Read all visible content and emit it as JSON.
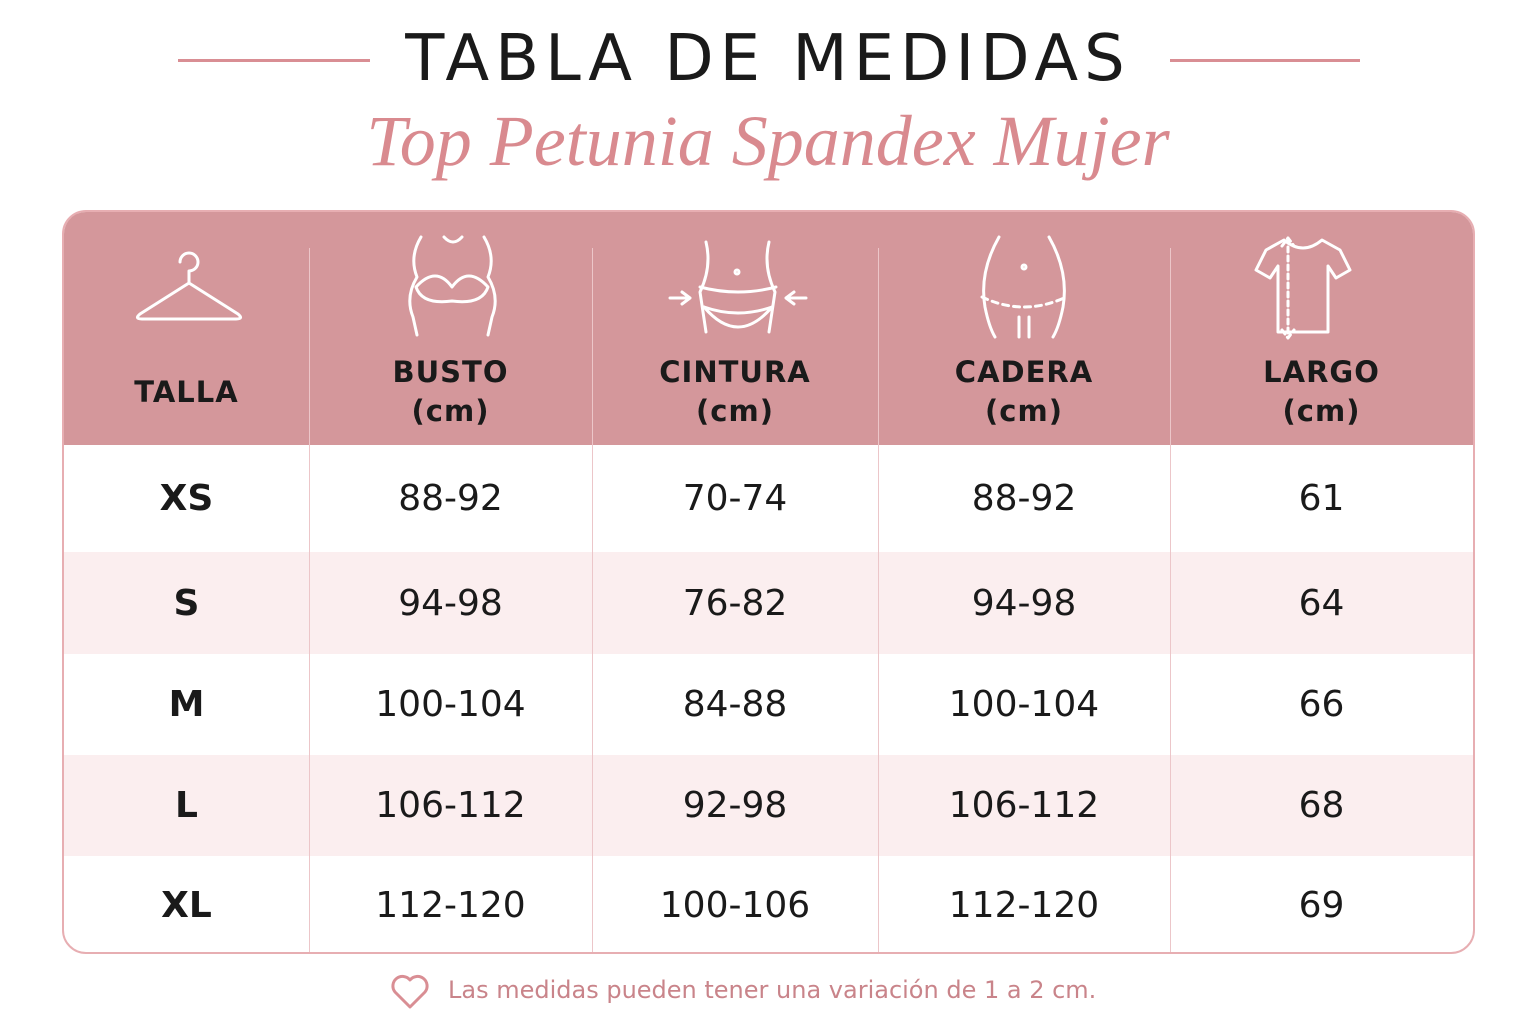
{
  "title": "TABLA DE MEDIDAS",
  "subtitle": "Top Petunia Spandex Mujer",
  "table": {
    "headers": [
      {
        "label": "TALLA"
      },
      {
        "label": "BUSTO",
        "unit": "(cm)"
      },
      {
        "label": "CINTURA",
        "unit": "(cm)"
      },
      {
        "label": "CADERA",
        "unit": "(cm)"
      },
      {
        "label": "LARGO",
        "unit": "(cm)"
      }
    ],
    "rows": [
      [
        "XS",
        "88-92",
        "70-74",
        "88-92",
        "61"
      ],
      [
        "S",
        "94-98",
        "76-82",
        "94-98",
        "64"
      ],
      [
        "M",
        "100-104",
        "84-88",
        "100-104",
        "66"
      ],
      [
        "L",
        "106-112",
        "92-98",
        "106-112",
        "68"
      ],
      [
        "XL",
        "112-120",
        "100-106",
        "112-120",
        "69"
      ]
    ]
  },
  "footnote": "Las medidas pueden tener una variación de 1 a 2 cm."
}
